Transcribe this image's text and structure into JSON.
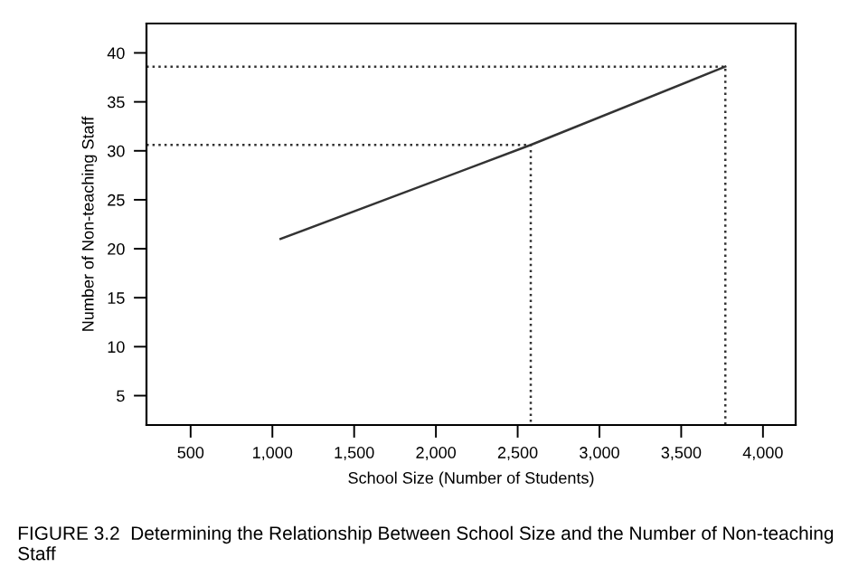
{
  "chart_data": {
    "type": "line",
    "xlabel": "School Size (Number of Students)",
    "ylabel": "Number of Non-teaching Staff",
    "xlim": [
      230,
      4200
    ],
    "xticks": [
      {
        "value": 500,
        "label": "500"
      },
      {
        "value": 1000,
        "label": "1,000"
      },
      {
        "value": 1500,
        "label": "1,500"
      },
      {
        "value": 2000,
        "label": "2,000"
      },
      {
        "value": 2500,
        "label": "2,500"
      },
      {
        "value": 3000,
        "label": "3,000"
      },
      {
        "value": 3500,
        "label": "3,500"
      },
      {
        "value": 4000,
        "label": "4,000"
      }
    ],
    "ylim": [
      2,
      43
    ],
    "yticks": [
      5,
      10,
      15,
      20,
      25,
      30,
      35,
      40
    ],
    "grid": false,
    "legend": false,
    "series": [
      {
        "color": "#333333",
        "line_style": "solid",
        "x": [
          1050,
          2580,
          3770
        ],
        "values": [
          21,
          30.6,
          38.6
        ]
      },
      {
        "color": "#333333",
        "line_style": "dotted",
        "x": [
          230,
          2580,
          2580
        ],
        "values": [
          30.6,
          30.6,
          2
        ]
      },
      {
        "color": "#333333",
        "line_style": "dotted",
        "x": [
          230,
          3770,
          3770
        ],
        "values": [
          38.6,
          38.6,
          2
        ]
      }
    ],
    "annotations": [
      "FIGURE 3.2  Determining the Relationship Between School Size and the Number of Non-teaching Staff"
    ]
  }
}
